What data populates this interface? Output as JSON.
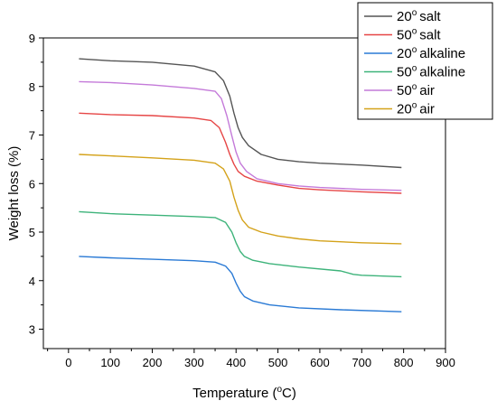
{
  "chart_data": {
    "type": "line",
    "title": "",
    "xlabel": "Temperature (",
    "xlabel_sup": "o",
    "xlabel_suffix": "C)",
    "ylabel": "Weight loss (%)",
    "xlim": [
      -60,
      900
    ],
    "ylim": [
      2.6,
      9.0
    ],
    "xticks": [
      0,
      100,
      200,
      300,
      400,
      500,
      600,
      700,
      800,
      900
    ],
    "yticks": [
      3,
      4,
      5,
      6,
      7,
      8,
      9
    ],
    "grid": false,
    "legend_position": "top-right",
    "series": [
      {
        "name_prefix": "20",
        "name_sup": "o",
        "name_suffix": "salt",
        "color": "#555555",
        "x": [
          25,
          100,
          200,
          300,
          350,
          370,
          385,
          395,
          405,
          415,
          430,
          460,
          500,
          550,
          600,
          700,
          795
        ],
        "y": [
          8.57,
          8.53,
          8.5,
          8.42,
          8.3,
          8.12,
          7.8,
          7.45,
          7.15,
          6.95,
          6.78,
          6.6,
          6.5,
          6.45,
          6.42,
          6.38,
          6.33
        ]
      },
      {
        "name_prefix": "50",
        "name_sup": "o",
        "name_suffix": "salt",
        "color": "#e64545",
        "x": [
          25,
          100,
          200,
          300,
          340,
          360,
          375,
          385,
          395,
          405,
          420,
          450,
          500,
          550,
          600,
          700,
          795
        ],
        "y": [
          7.45,
          7.42,
          7.4,
          7.35,
          7.3,
          7.15,
          6.85,
          6.6,
          6.4,
          6.25,
          6.15,
          6.05,
          5.97,
          5.9,
          5.87,
          5.83,
          5.8
        ]
      },
      {
        "name_prefix": "20",
        "name_sup": "o",
        "name_suffix": "alkaline",
        "color": "#2a7ad5",
        "x": [
          25,
          100,
          200,
          300,
          350,
          375,
          390,
          400,
          410,
          420,
          440,
          480,
          550,
          650,
          795
        ],
        "y": [
          4.5,
          4.47,
          4.44,
          4.41,
          4.38,
          4.3,
          4.15,
          3.95,
          3.78,
          3.67,
          3.58,
          3.5,
          3.44,
          3.4,
          3.36
        ]
      },
      {
        "name_prefix": "50",
        "name_sup": "o",
        "name_suffix": "alkaline",
        "color": "#3db37a",
        "x": [
          25,
          100,
          200,
          300,
          350,
          375,
          390,
          400,
          410,
          420,
          440,
          480,
          550,
          650,
          680,
          700,
          795
        ],
        "y": [
          5.42,
          5.38,
          5.35,
          5.32,
          5.3,
          5.2,
          5.0,
          4.78,
          4.6,
          4.5,
          4.42,
          4.35,
          4.28,
          4.2,
          4.13,
          4.11,
          4.08
        ]
      },
      {
        "name_prefix": "50",
        "name_sup": "o",
        "name_suffix": "air",
        "color": "#c47ad9",
        "x": [
          25,
          100,
          200,
          300,
          350,
          365,
          378,
          390,
          400,
          410,
          425,
          450,
          500,
          550,
          600,
          700,
          795
        ],
        "y": [
          8.1,
          8.08,
          8.03,
          7.96,
          7.9,
          7.75,
          7.4,
          6.98,
          6.65,
          6.42,
          6.25,
          6.1,
          6.0,
          5.95,
          5.92,
          5.88,
          5.86
        ]
      },
      {
        "name_prefix": "20",
        "name_sup": "o",
        "name_suffix": "air",
        "color": "#d4a21a",
        "x": [
          25,
          100,
          200,
          300,
          350,
          370,
          385,
          395,
          405,
          415,
          430,
          460,
          500,
          550,
          600,
          700,
          795
        ],
        "y": [
          6.6,
          6.57,
          6.53,
          6.48,
          6.42,
          6.3,
          6.05,
          5.72,
          5.45,
          5.25,
          5.1,
          5.0,
          4.92,
          4.86,
          4.82,
          4.78,
          4.76
        ]
      }
    ]
  }
}
